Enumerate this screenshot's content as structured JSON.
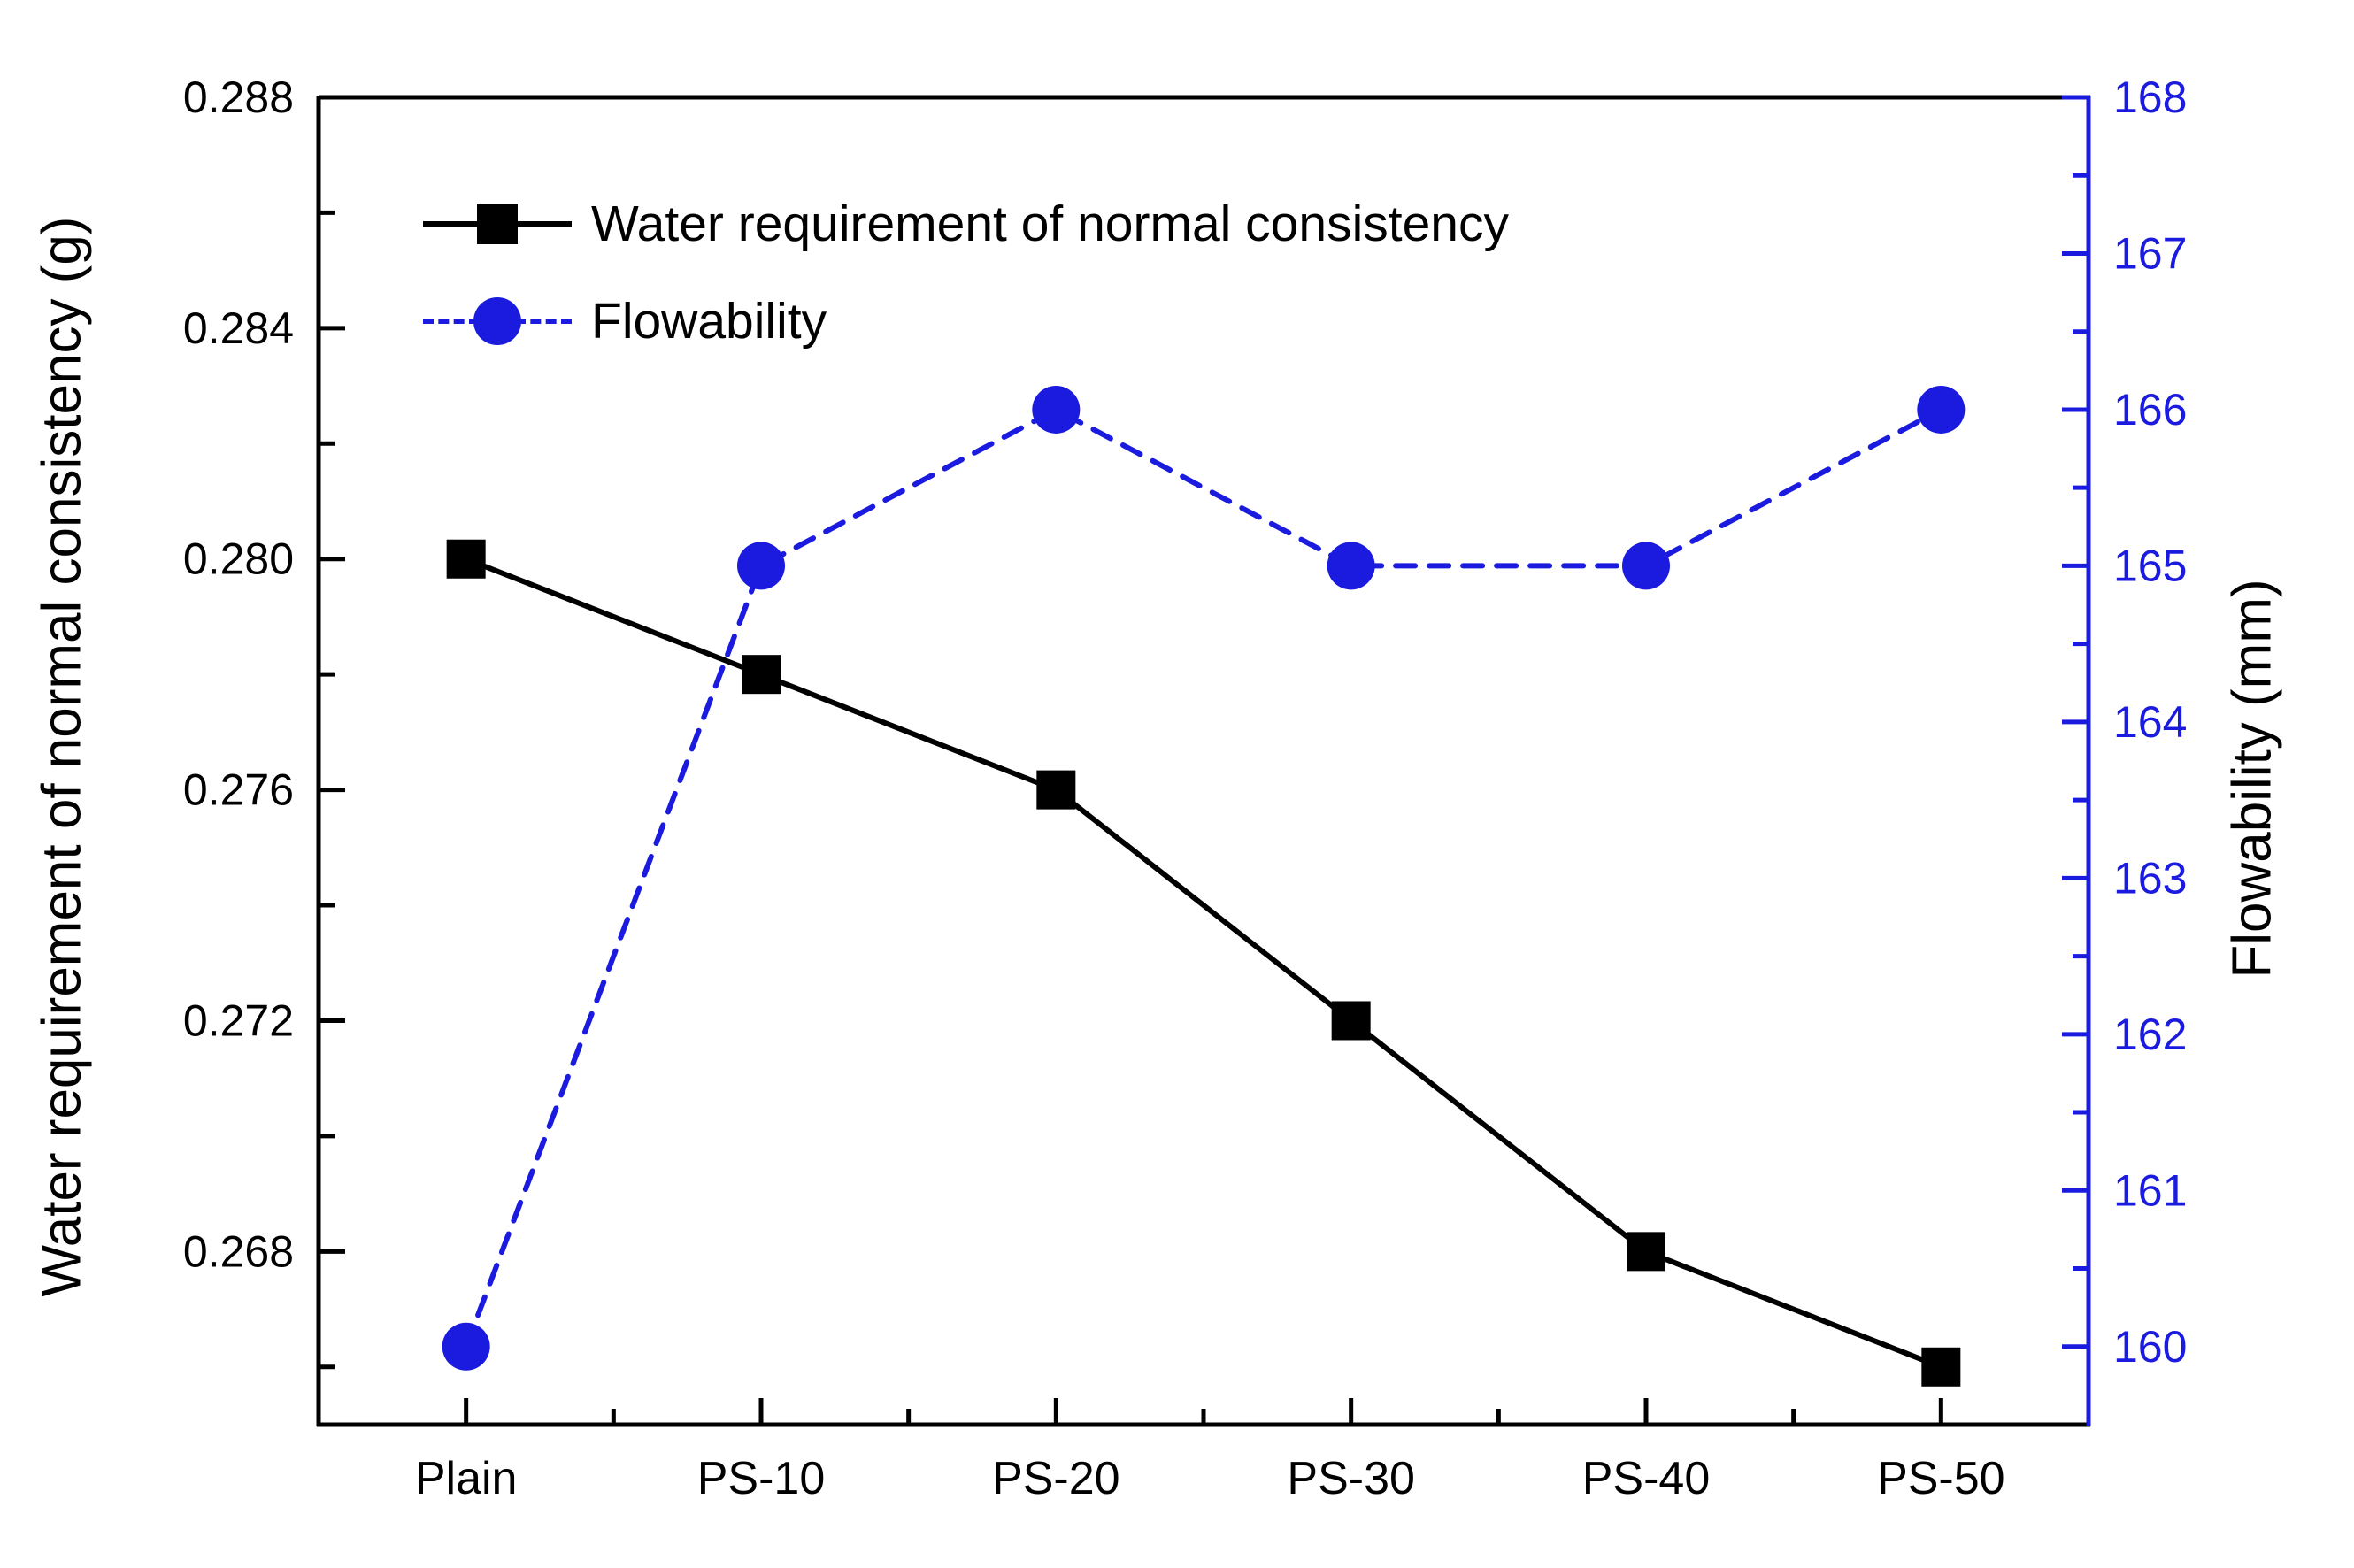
{
  "chart_data": {
    "type": "line",
    "categories": [
      "Plain",
      "PS-10",
      "PS-20",
      "PS-30",
      "PS-40",
      "PS-50"
    ],
    "series": [
      {
        "name": "Water requirement of normal consistency",
        "axis": "left",
        "color": "#000000",
        "marker": "square",
        "line_style": "solid",
        "values": [
          0.28,
          0.278,
          0.276,
          0.272,
          0.268,
          0.266
        ]
      },
      {
        "name": "Flowability",
        "axis": "right",
        "color": "#1b1be0",
        "marker": "circle",
        "line_style": "dashed",
        "values": [
          160,
          165,
          166,
          165,
          165,
          166
        ]
      }
    ],
    "left_axis": {
      "label": "Water requirement of normal consistency (g)",
      "min": 0.265,
      "max": 0.288,
      "major_ticks": [
        0.268,
        0.272,
        0.276,
        0.28,
        0.284,
        0.288
      ],
      "tick_labels": [
        "0.268",
        "0.272",
        "0.276",
        "0.280",
        "0.284",
        "0.288"
      ],
      "minor_ticks": [
        0.266,
        0.27,
        0.274,
        0.278,
        0.282,
        0.286
      ],
      "color": "#000000"
    },
    "right_axis": {
      "label": "Flowability (mm)",
      "min": 159.5,
      "max": 168,
      "major_ticks": [
        160,
        161,
        162,
        163,
        164,
        165,
        166,
        167,
        168
      ],
      "tick_labels": [
        "160",
        "161",
        "162",
        "163",
        "164",
        "165",
        "166",
        "167",
        "168"
      ],
      "minor_ticks": [
        160.5,
        161.5,
        162.5,
        163.5,
        164.5,
        165.5,
        166.5,
        167.5
      ],
      "color": "#1b1be0"
    },
    "legend_position": "top-left-inside",
    "grid": "off",
    "title": ""
  }
}
